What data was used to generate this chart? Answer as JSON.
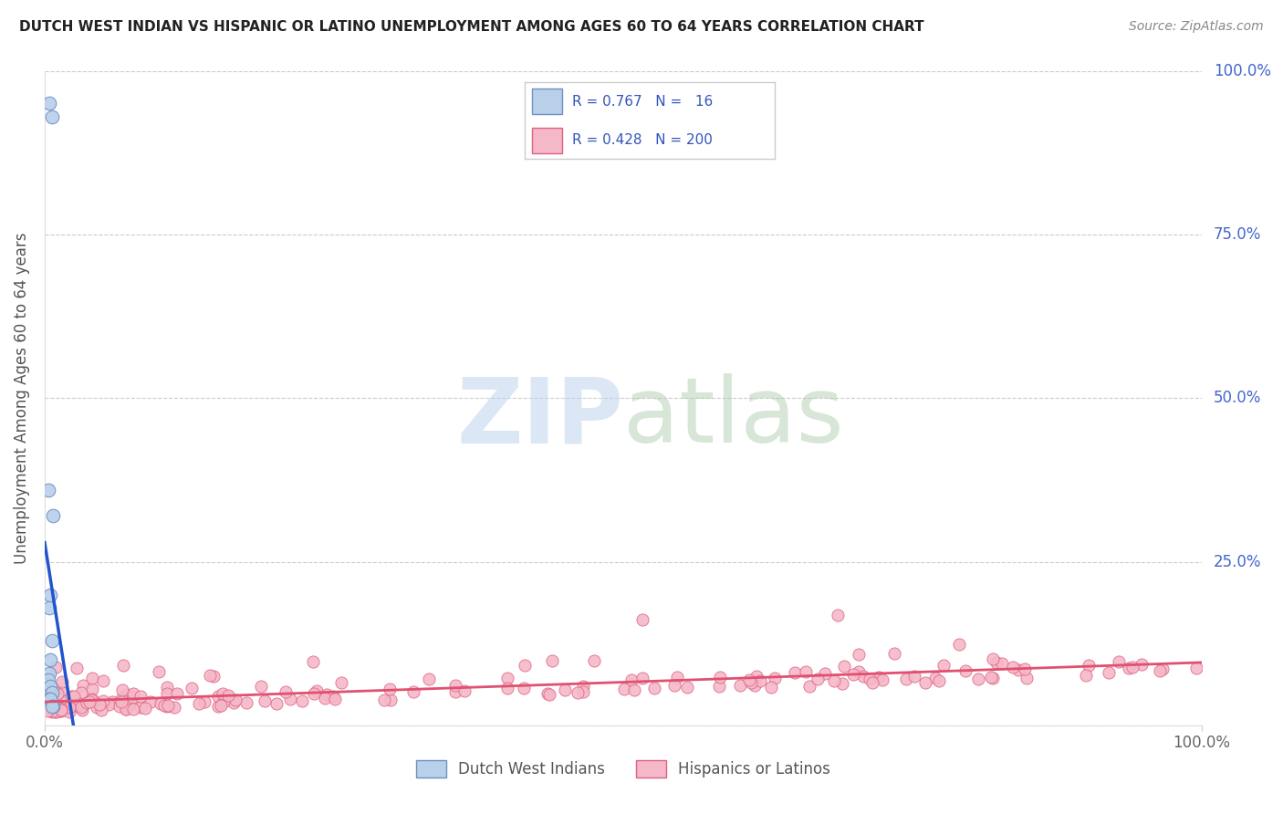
{
  "title": "DUTCH WEST INDIAN VS HISPANIC OR LATINO UNEMPLOYMENT AMONG AGES 60 TO 64 YEARS CORRELATION CHART",
  "source_text": "Source: ZipAtlas.com",
  "ylabel": "Unemployment Among Ages 60 to 64 years",
  "xlim": [
    0,
    1
  ],
  "ylim": [
    0,
    1
  ],
  "yticks": [
    0.0,
    0.25,
    0.5,
    0.75,
    1.0
  ],
  "ytick_labels_right": [
    "",
    "25.0%",
    "50.0%",
    "75.0%",
    "100.0%"
  ],
  "xtick_left": "0.0%",
  "xtick_right": "100.0%",
  "watermark_zip": "ZIP",
  "watermark_atlas": "atlas",
  "legend_line1": "R = 0.767   N =   16",
  "legend_line2": "R = 0.428   N = 200",
  "series1_label": "Dutch West Indians",
  "series2_label": "Hispanics or Latinos",
  "series1_face_color": "#b8d0ea",
  "series2_face_color": "#f4b8c8",
  "series1_edge_color": "#7090c0",
  "series2_edge_color": "#e06080",
  "line1_color": "#2255cc",
  "line2_color": "#e05070",
  "background_color": "#ffffff",
  "grid_color": "#cccccc",
  "title_color": "#222222",
  "right_tick_color": "#4466cc",
  "ylabel_color": "#555555",
  "legend_color": "#3355bb",
  "source_color": "#888888"
}
